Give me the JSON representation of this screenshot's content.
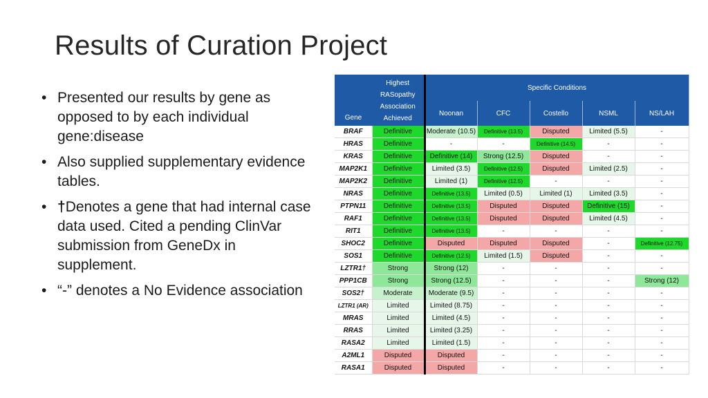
{
  "slide": {
    "title": "Results of Curation Project",
    "bullets": [
      {
        "prefix": "",
        "text": "Presented our results by gene as opposed to by each individual gene:disease"
      },
      {
        "prefix": "",
        "text": "Also supplied supplementary evidence tables."
      },
      {
        "prefix": "†",
        "text": "Denotes a gene that had internal case data used. Cited a pending ClinVar submission from GeneDx in supplement."
      },
      {
        "prefix": "",
        "text": "“-” denotes a No Evidence association"
      }
    ]
  },
  "table": {
    "header_gene": "Gene",
    "header_highest": "Highest RASopathy Association Achieved",
    "header_specific": "Specific Conditions",
    "conditions": [
      "Noonan",
      "CFC",
      "Costello",
      "NSML",
      "NS/LAH"
    ],
    "rows": [
      {
        "gene": "BRAF",
        "highest": "Definitive",
        "cells": [
          "Moderate (10.5)",
          "Definitive (13.5)",
          "Disputed",
          "Limited (5.5)",
          "-"
        ]
      },
      {
        "gene": "HRAS",
        "highest": "Definitive",
        "cells": [
          "-",
          "-",
          "Definitive (14.5)",
          "-",
          "-"
        ]
      },
      {
        "gene": "KRAS",
        "highest": "Definitive",
        "cells": [
          "Definitive (14)",
          "Strong (12.5)",
          "Disputed",
          "-",
          "-"
        ]
      },
      {
        "gene": "MAP2K1",
        "highest": "Definitive",
        "cells": [
          "Limited (3.5)",
          "Definitive (12.5)",
          "Disputed",
          "Limited (2.5)",
          "-"
        ]
      },
      {
        "gene": "MAP2K2",
        "highest": "Definitive",
        "cells": [
          "Limited (1)",
          "Definitive (12.5)",
          "-",
          "-",
          "-"
        ]
      },
      {
        "gene": "NRAS",
        "highest": "Definitive",
        "cells": [
          "Definitive (13.5)",
          "Limited (0.5)",
          "Limited (1)",
          "Limited (3.5)",
          "-"
        ]
      },
      {
        "gene": "PTPN11",
        "highest": "Definitive",
        "cells": [
          "Definitive (13.5)",
          "Disputed",
          "Disputed",
          "Definitive (15)",
          "-"
        ]
      },
      {
        "gene": "RAF1",
        "highest": "Definitive",
        "cells": [
          "Definitive (13.5)",
          "Disputed",
          "Disputed",
          "Limited (4.5)",
          "-"
        ]
      },
      {
        "gene": "RIT1",
        "highest": "Definitive",
        "cells": [
          "Definitive (13.5)",
          "-",
          "-",
          "-",
          "-"
        ]
      },
      {
        "gene": "SHOC2",
        "highest": "Definitive",
        "cells": [
          "Disputed",
          "Disputed",
          "Disputed",
          "-",
          "Definitive (12.75)"
        ]
      },
      {
        "gene": "SOS1",
        "highest": "Definitive",
        "cells": [
          "Definitive (12.5)",
          "Limited (1.5)",
          "Disputed",
          "-",
          "-"
        ]
      },
      {
        "gene": "LZTR1†",
        "highest": "Strong",
        "cells": [
          "Strong (12)",
          "-",
          "-",
          "-",
          "-"
        ]
      },
      {
        "gene": "PPP1CB",
        "highest": "Strong",
        "cells": [
          "Strong (12.5)",
          "-",
          "-",
          "-",
          "Strong (12)"
        ]
      },
      {
        "gene": "SOS2†",
        "highest": "Moderate",
        "cells": [
          "Moderate (9.5)",
          "-",
          "-",
          "-",
          "-"
        ]
      },
      {
        "gene": "LZTR1 (AR)",
        "highest": "Limited",
        "cells": [
          "Limited (8.75)",
          "-",
          "-",
          "-",
          "-"
        ]
      },
      {
        "gene": "MRAS",
        "highest": "Limited",
        "cells": [
          "Limited (4.5)",
          "-",
          "-",
          "-",
          "-"
        ]
      },
      {
        "gene": "RRAS",
        "highest": "Limited",
        "cells": [
          "Limited (3.25)",
          "-",
          "-",
          "-",
          "-"
        ]
      },
      {
        "gene": "RASA2",
        "highest": "Limited",
        "cells": [
          "Limited (1.5)",
          "-",
          "-",
          "-",
          "-"
        ]
      },
      {
        "gene": "A2ML1",
        "highest": "Disputed",
        "cells": [
          "Disputed",
          "-",
          "-",
          "-",
          "-"
        ]
      },
      {
        "gene": "RASA1",
        "highest": "Disputed",
        "cells": [
          "Disputed",
          "-",
          "-",
          "-",
          "-"
        ]
      }
    ]
  },
  "colors": {
    "header_bg": "#1f5aa6",
    "definitive": "#1fd82c",
    "strong": "#8fe79a",
    "moderate": "#c6f1cc",
    "limited": "#e6f7e9",
    "disputed": "#f4a7a7",
    "none": "#ffffff"
  }
}
